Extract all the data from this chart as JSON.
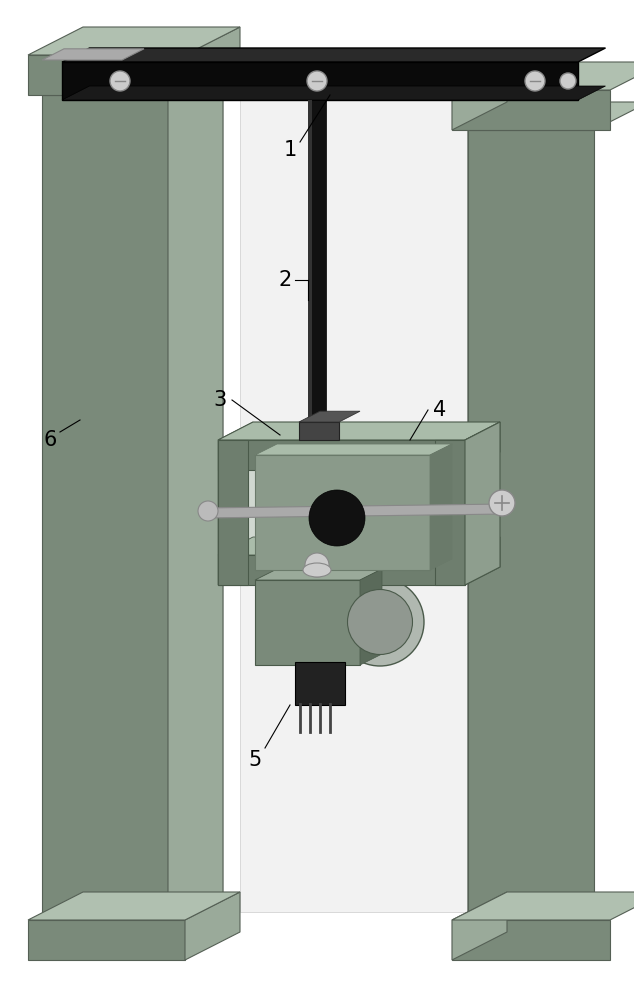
{
  "background_color": "#ffffff",
  "col_front": "#7a8a7a",
  "col_side": "#9aaa9a",
  "col_top": "#b0c0b0",
  "col_inner": "#c8d4c8",
  "col_dark": "#556055",
  "back_panel": "#f2f2f2",
  "back_panel_edge": "#cccccc",
  "rod_color": "#111111",
  "crossbar_color": "#0a0a0a",
  "crossbar_top": "#2a2a2a",
  "screw_color": "#cccccc",
  "gimbal_front": "#6e7e6e",
  "gimbal_side": "#8e9e8e",
  "gimbal_top": "#aabcaa",
  "gimbal_inner": "#c0cec0",
  "gimbal_dark": "#4a5a4a",
  "plate_front": "#8a9a8a",
  "plate_top": "#aabcaa",
  "plate_side": "#6a7a6a",
  "hole_color": "#111111",
  "axle_color": "#aaaaaa",
  "axle_dark": "#888888",
  "sensor_box": "#7a8a7a",
  "sensor_box_top": "#9aaa9a",
  "sensor_box_side": "#5a6a5a",
  "disk_color": "#b0b8b0",
  "disk_inner": "#909890",
  "ic_color": "#222222",
  "ic_lead": "#444444",
  "label_color": "#000000",
  "line_color": "#555555",
  "label_fontsize": 15,
  "figsize": [
    6.34,
    10.0
  ],
  "dpi": 100
}
